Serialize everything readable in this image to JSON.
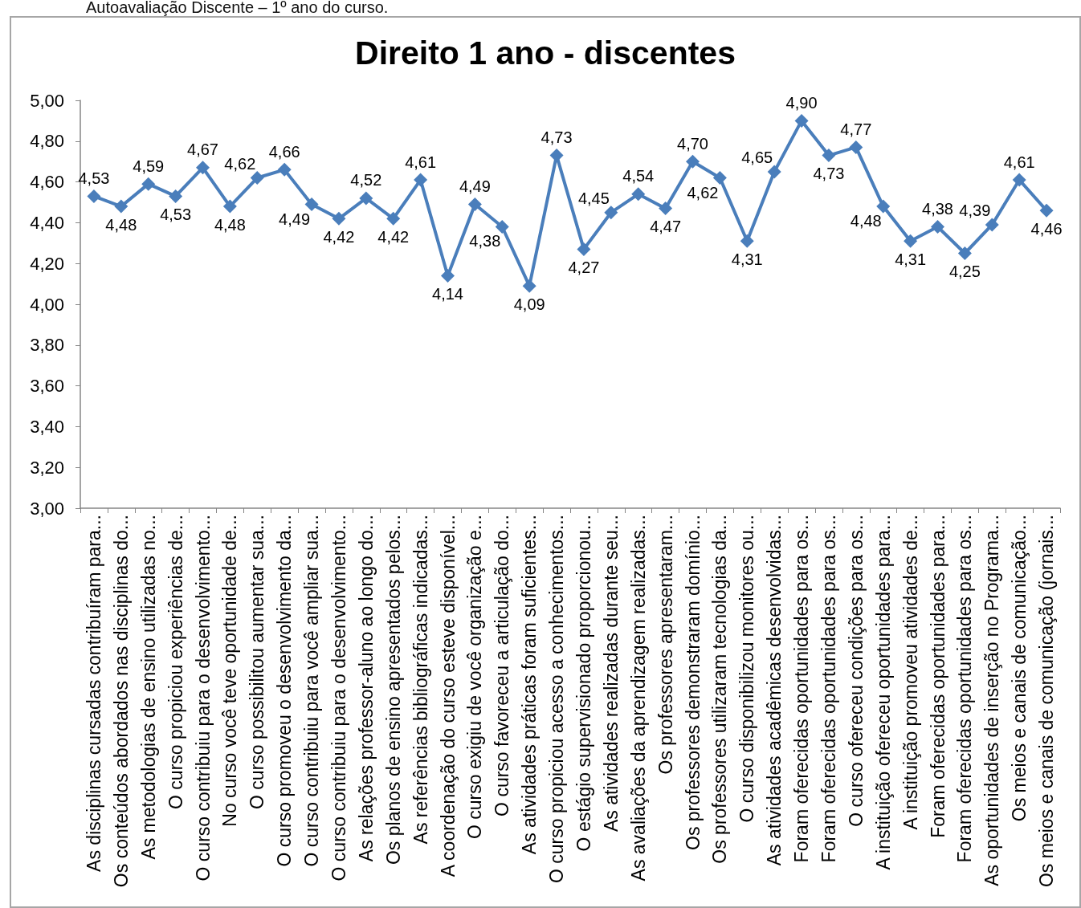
{
  "chart_data": {
    "type": "line",
    "title": "Direito 1 ano - discentes",
    "annotations": [
      "Autoavaliação Discente – 1º ano do curso."
    ],
    "categories": [
      "As disciplinas cursadas contribuíram para...",
      "Os conteúdos abordados nas disciplinas do...",
      "As metodologias de ensino utilizadas no...",
      "O curso propiciou experiências de...",
      "O curso contribuiu para o desenvolvimento...",
      "No curso você teve oportunidade de...",
      "O curso possibilitou aumentar sua...",
      "O curso promoveu o desenvolvimento da...",
      "O curso contribuiu para você ampliar sua...",
      "O curso contribuiu para o desenvolvimento...",
      "As relações professor-aluno ao longo do...",
      "Os planos de ensino apresentados pelos...",
      "As referências bibliográficas indicadas...",
      "A coordenação do curso esteve disponível...",
      "O curso exigiu de você organização e...",
      "O curso favoreceu a articulação do...",
      "As atividades práticas foram suficientes...",
      "O curso propiciou acesso a conhecimentos...",
      "O estágio supervisionado proporcionou...",
      "As atividades realizadas durante seu...",
      "As avaliações da aprendizagem realizadas...",
      "Os professores apresentaram...",
      "Os professores demonstraram domínio...",
      "Os professores utilizaram tecnologias da...",
      "O curso disponibilizou monitores ou...",
      "As atividades acadêmicas desenvolvidas...",
      "Foram oferecidas oportunidades para os...",
      "Foram oferecidas oportunidades para os...",
      "O curso ofereceu condições para os...",
      "A instituição ofereceu oportunidades para...",
      "A instituição promoveu atividades de...",
      "Foram oferecidas oportunidades para...",
      "Foram oferecidas oportunidades para os...",
      "As oportunidades de inserção no Programa...",
      "Os meios e canais de comunicação...",
      "Os meios e canais de comunicação (jornais..."
    ],
    "series": [
      {
        "color": "#4a7ebb",
        "values": [
          4.53,
          4.48,
          4.59,
          4.53,
          4.67,
          4.48,
          4.62,
          4.66,
          4.49,
          4.42,
          4.52,
          4.42,
          4.61,
          4.14,
          4.49,
          4.38,
          4.09,
          4.73,
          4.27,
          4.45,
          4.54,
          4.47,
          4.7,
          4.62,
          4.31,
          4.65,
          4.9,
          4.73,
          4.77,
          4.48,
          4.31,
          4.38,
          4.25,
          4.39,
          4.61,
          4.46
        ],
        "value_labels": [
          "4,53",
          "4,48",
          "4,59",
          "4,53",
          "4,67",
          "4,48",
          "4,62",
          "4,66",
          "4,49",
          "4,42",
          "4,52",
          "4,42",
          "4,61",
          "4,14",
          "4,49",
          "4,38",
          "4,09",
          "4,73",
          "4,27",
          "4,45",
          "4,54",
          "4,47",
          "4,70",
          "4,62",
          "4,31",
          "4,65",
          "4,90",
          "4,73",
          "4,77",
          "4,48",
          "4,31",
          "4,38",
          "4,25",
          "4,39",
          "4,61",
          "4,46"
        ]
      }
    ],
    "ylim": [
      3,
      5
    ],
    "yticks": [
      {
        "value": 3,
        "label": "3,00"
      },
      {
        "value": 3.2,
        "label": "3,20"
      },
      {
        "value": 3.4,
        "label": "3,40"
      },
      {
        "value": 3.6,
        "label": "3,60"
      },
      {
        "value": 3.8,
        "label": "3,80"
      },
      {
        "value": 4,
        "label": "4,00"
      },
      {
        "value": 4.2,
        "label": "4,20"
      },
      {
        "value": 4.4,
        "label": "4,40"
      },
      {
        "value": 4.6,
        "label": "4,60"
      },
      {
        "value": 4.8,
        "label": "4,80"
      },
      {
        "value": 5,
        "label": "5,00"
      }
    ],
    "marker": "diamond",
    "line_style": "solid"
  }
}
